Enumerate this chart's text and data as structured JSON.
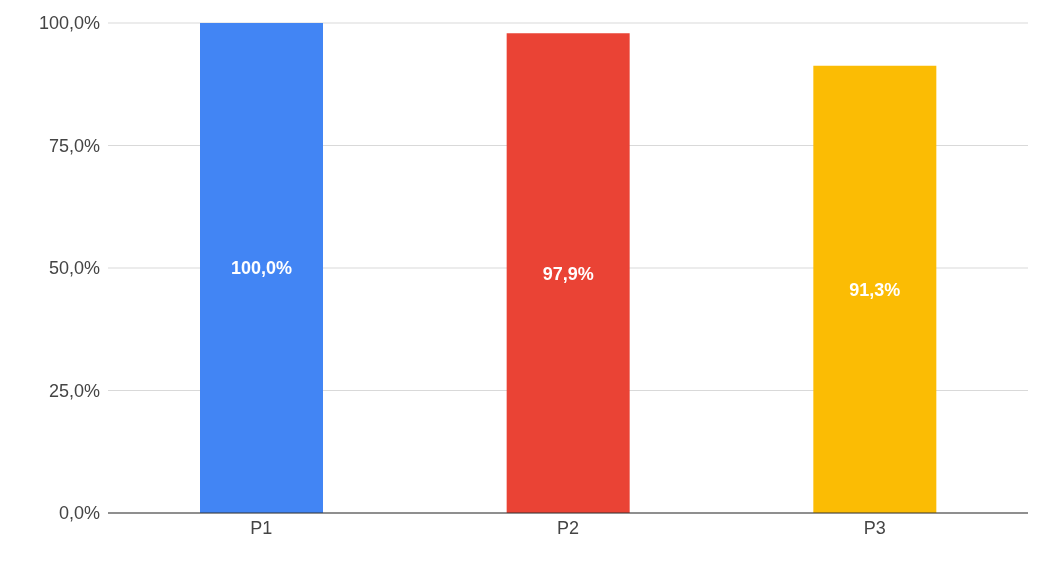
{
  "chart_data": {
    "type": "bar",
    "categories": [
      "P1",
      "P2",
      "P3"
    ],
    "values": [
      100,
      97.9,
      91.3
    ],
    "colors": [
      "#4285f4",
      "#ea4335",
      "#fbbc04"
    ],
    "value_labels": [
      "100,0%",
      "97,9%",
      "91,3%"
    ],
    "ylim": [
      0,
      100
    ],
    "yticks": [
      {
        "value": 0,
        "label": "0,0%"
      },
      {
        "value": 25,
        "label": "25,0%"
      },
      {
        "value": 50,
        "label": "50,0%"
      },
      {
        "value": 75,
        "label": "75,0%"
      },
      {
        "value": 100,
        "label": "100,0%"
      }
    ],
    "grid": "y"
  }
}
